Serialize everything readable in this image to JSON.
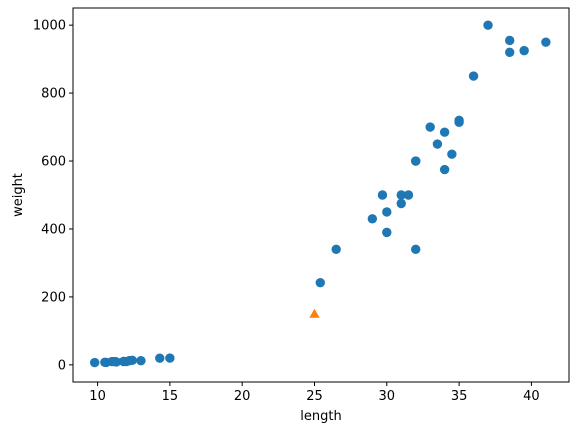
{
  "chart_data": {
    "type": "scatter",
    "xlabel": "length",
    "ylabel": "weight",
    "xlim": [
      8.3,
      42.6
    ],
    "ylim": [
      -50.5,
      1050.5
    ],
    "x_ticks": [
      10,
      15,
      20,
      25,
      30,
      35,
      40
    ],
    "y_ticks": [
      0,
      200,
      400,
      600,
      800,
      1000
    ],
    "grid": false,
    "legend": "none",
    "series": [
      {
        "marker": "circle",
        "color": "#1f77b4",
        "points": [
          {
            "x": 25.4,
            "y": 242
          },
          {
            "x": 26.5,
            "y": 340
          },
          {
            "x": 29.0,
            "y": 430
          },
          {
            "x": 29.7,
            "y": 500
          },
          {
            "x": 30.0,
            "y": 450
          },
          {
            "x": 30.0,
            "y": 390
          },
          {
            "x": 31.0,
            "y": 500
          },
          {
            "x": 31.0,
            "y": 475
          },
          {
            "x": 31.5,
            "y": 500
          },
          {
            "x": 32.0,
            "y": 340
          },
          {
            "x": 32.0,
            "y": 600
          },
          {
            "x": 32.0,
            "y": 600
          },
          {
            "x": 33.0,
            "y": 700
          },
          {
            "x": 33.5,
            "y": 650
          },
          {
            "x": 34.0,
            "y": 685
          },
          {
            "x": 34.0,
            "y": 575
          },
          {
            "x": 34.5,
            "y": 620
          },
          {
            "x": 35.0,
            "y": 720
          },
          {
            "x": 35.0,
            "y": 714
          },
          {
            "x": 36.0,
            "y": 850
          },
          {
            "x": 37.0,
            "y": 1000
          },
          {
            "x": 38.5,
            "y": 955
          },
          {
            "x": 38.5,
            "y": 920
          },
          {
            "x": 39.5,
            "y": 925
          },
          {
            "x": 41.0,
            "y": 950
          },
          {
            "x": 9.8,
            "y": 6.7
          },
          {
            "x": 10.5,
            "y": 7.5
          },
          {
            "x": 10.6,
            "y": 7.0
          },
          {
            "x": 11.0,
            "y": 9.7
          },
          {
            "x": 11.2,
            "y": 9.8
          },
          {
            "x": 11.3,
            "y": 8.7
          },
          {
            "x": 11.8,
            "y": 10.0
          },
          {
            "x": 11.8,
            "y": 9.9
          },
          {
            "x": 12.0,
            "y": 9.8
          },
          {
            "x": 12.2,
            "y": 12.2
          },
          {
            "x": 12.4,
            "y": 13.4
          },
          {
            "x": 13.0,
            "y": 12.2
          },
          {
            "x": 14.3,
            "y": 19.7
          },
          {
            "x": 15.0,
            "y": 19.9
          }
        ]
      },
      {
        "marker": "triangle",
        "color": "#ff7f0e",
        "points": [
          {
            "x": 25.0,
            "y": 150
          }
        ]
      }
    ]
  }
}
